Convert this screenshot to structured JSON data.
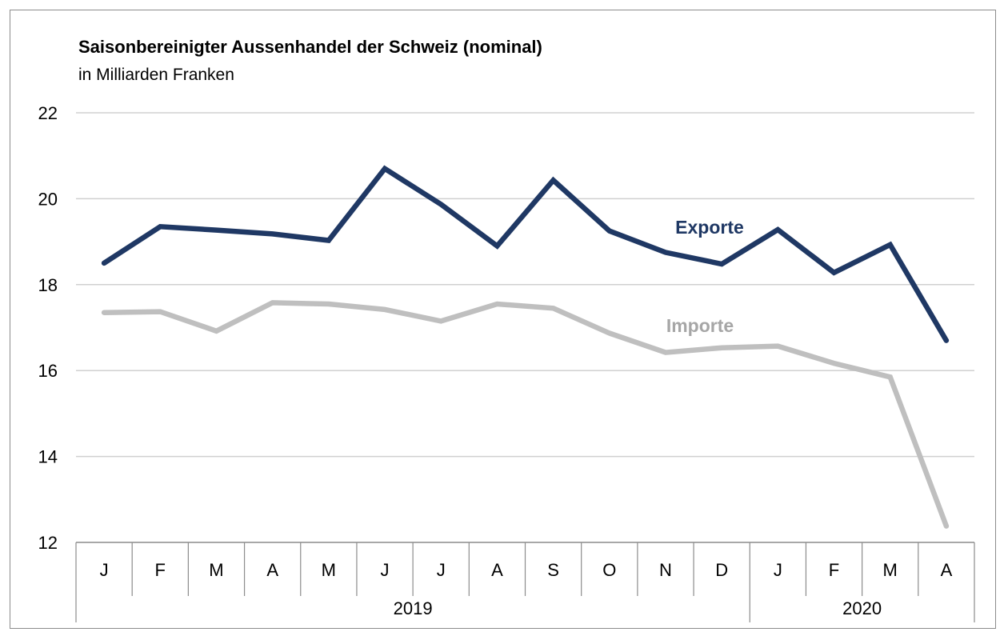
{
  "chart_data": {
    "type": "line",
    "title": "Saisonbereinigter Aussenhandel der Schweiz (nominal)",
    "subtitle": "in Milliarden Franken",
    "xlabel": "",
    "ylabel": "",
    "ylim": [
      12,
      22
    ],
    "yticks": [
      12,
      14,
      16,
      18,
      20,
      22
    ],
    "grid": true,
    "categories": [
      "J",
      "F",
      "M",
      "A",
      "M",
      "J",
      "J",
      "A",
      "S",
      "O",
      "N",
      "D",
      "J",
      "F",
      "M",
      "A"
    ],
    "years": [
      {
        "label": "2019",
        "start": 0,
        "end": 11
      },
      {
        "label": "2020",
        "start": 12,
        "end": 15
      }
    ],
    "series": [
      {
        "name": "Exporte",
        "color": "#1f3864",
        "values": [
          18.5,
          19.35,
          19.27,
          19.18,
          19.03,
          20.7,
          19.87,
          18.9,
          20.43,
          19.25,
          18.75,
          18.48,
          19.28,
          18.28,
          18.93,
          16.7
        ]
      },
      {
        "name": "Importe",
        "color": "#bfbfbf",
        "values": [
          17.35,
          17.37,
          16.92,
          17.58,
          17.55,
          17.42,
          17.15,
          17.55,
          17.45,
          16.87,
          16.42,
          16.53,
          16.57,
          16.17,
          15.85,
          12.38
        ]
      }
    ]
  }
}
